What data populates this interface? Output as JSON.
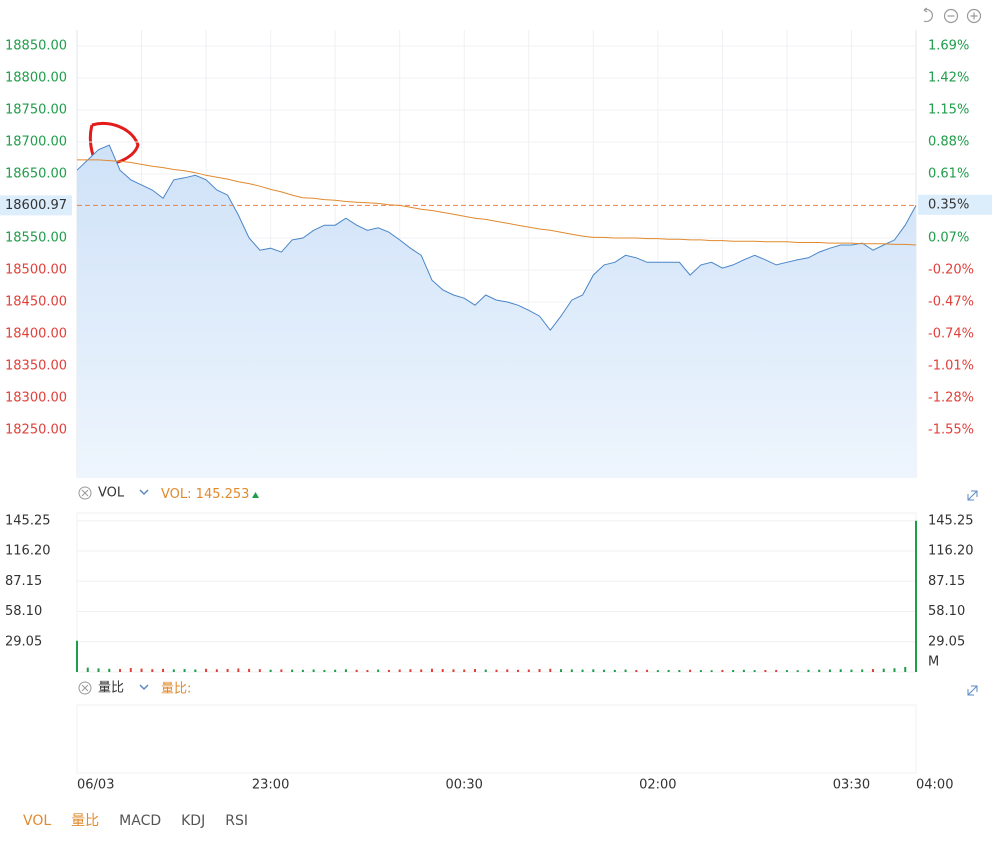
{
  "chart_data": [
    {
      "type": "area",
      "categories": [
        "06/03",
        null,
        null,
        null,
        null,
        null,
        null,
        null,
        null,
        null,
        null,
        null,
        null,
        null,
        null,
        null,
        null,
        null,
        "23:00",
        null,
        null,
        null,
        null,
        null,
        null,
        null,
        null,
        null,
        null,
        null,
        null,
        null,
        null,
        null,
        null,
        null,
        "00:30",
        null,
        null,
        null,
        null,
        null,
        null,
        null,
        null,
        null,
        null,
        null,
        null,
        null,
        null,
        null,
        null,
        null,
        "02:00",
        null,
        null,
        null,
        null,
        null,
        null,
        null,
        null,
        null,
        null,
        null,
        null,
        null,
        null,
        null,
        null,
        null,
        "03:30",
        null,
        null,
        null,
        null,
        null,
        "04:00"
      ],
      "series": [
        {
          "color": "#4a86c8",
          "values": [
            18656,
            18672,
            18688,
            18695,
            18656,
            18641,
            18633,
            18625,
            18612,
            18641,
            18644,
            18648,
            18641,
            18625,
            18617,
            18586,
            18550,
            18531,
            18534,
            18528,
            18547,
            18550,
            18562,
            18570,
            18570,
            18581,
            18570,
            18562,
            18566,
            18559,
            18547,
            18534,
            18523,
            18484,
            18469,
            18461,
            18456,
            18445,
            18461,
            18453,
            18450,
            18445,
            18437,
            18428,
            18406,
            18428,
            18453,
            18461,
            18492,
            18508,
            18512,
            18523,
            18519,
            18512,
            18512,
            18512,
            18512,
            18492,
            18508,
            18512,
            18503,
            18508,
            18516,
            18523,
            18516,
            18508,
            18512,
            18516,
            18519,
            18528,
            18534,
            18539,
            18539,
            18542,
            18531,
            18539,
            18547,
            18570,
            18600.97
          ]
        },
        {
          "color": "#e08a2e",
          "values": [
            18672,
            18672,
            18672,
            18671,
            18670,
            18668,
            18665,
            18662,
            18660,
            18657,
            18655,
            18652,
            18648,
            18645,
            18642,
            18638,
            18635,
            18631,
            18626,
            18622,
            18617,
            18613,
            18612,
            18610,
            18609,
            18607,
            18606,
            18605,
            18604,
            18602,
            18601,
            18598,
            18595,
            18593,
            18590,
            18587,
            18584,
            18581,
            18579,
            18576,
            18573,
            18570,
            18567,
            18564,
            18562,
            18559,
            18556,
            18553,
            18551,
            18551,
            18550,
            18550,
            18550,
            18549,
            18549,
            18548,
            18548,
            18547,
            18547,
            18546,
            18546,
            18545,
            18545,
            18545,
            18544,
            18544,
            18544,
            18543,
            18543,
            18543,
            18542,
            18542,
            18542,
            18541,
            18541,
            18541,
            18540,
            18540,
            18539
          ]
        }
      ],
      "ylim": [
        18175,
        18875
      ],
      "yticks": [
        {
          "value": 18850,
          "label": "18850.00"
        },
        {
          "value": 18800,
          "label": "18800.00"
        },
        {
          "value": 18750,
          "label": "18750.00"
        },
        {
          "value": 18700,
          "label": "18700.00"
        },
        {
          "value": 18650,
          "label": "18650.00"
        },
        {
          "value": 18550,
          "label": "18550.00"
        },
        {
          "value": 18500,
          "label": "18500.00"
        },
        {
          "value": 18450,
          "label": "18450.00"
        },
        {
          "value": 18400,
          "label": "18400.00"
        },
        {
          "value": 18350,
          "label": "18350.00"
        },
        {
          "value": 18300,
          "label": "18300.00"
        },
        {
          "value": 18250,
          "label": "18250.00"
        }
      ],
      "y2lim": [
        -1.955,
        1.825
      ],
      "y2ticks": [
        {
          "value": 1.69,
          "label": "1.69%"
        },
        {
          "value": 1.42,
          "label": "1.42%"
        },
        {
          "value": 1.15,
          "label": "1.15%"
        },
        {
          "value": 0.88,
          "label": "0.88%"
        },
        {
          "value": 0.61,
          "label": "0.61%"
        },
        {
          "value": 0.07,
          "label": "0.07%"
        },
        {
          "value": -0.2,
          "label": "-0.20%"
        },
        {
          "value": -0.47,
          "label": "-0.47%"
        },
        {
          "value": -0.74,
          "label": "-0.74%"
        },
        {
          "value": -1.01,
          "label": "-1.01%"
        },
        {
          "value": -1.28,
          "label": "-1.28%"
        },
        {
          "value": -1.55,
          "label": "-1.55%"
        }
      ],
      "current": {
        "value": 18600.97,
        "label": "18600.97"
      },
      "current_pct": {
        "value": 0.35,
        "label": "0.35%"
      },
      "up_color": "#1f9d4a",
      "down_color": "#e0403a"
    },
    {
      "type": "bar",
      "title": "VOL",
      "readout": "VOL:",
      "unit": "M",
      "values": [
        30,
        4.2,
        3.5,
        3.1,
        2.9,
        3.8,
        3.3,
        2.7,
        3.0,
        2.5,
        2.8,
        2.4,
        3.1,
        2.6,
        2.9,
        3.4,
        3.0,
        2.7,
        2.2,
        2.5,
        2.3,
        2.1,
        2.4,
        2.0,
        2.2,
        2.6,
        2.1,
        1.9,
        2.3,
        2.0,
        2.4,
        2.7,
        2.5,
        3.2,
        2.8,
        2.6,
        2.4,
        2.9,
        2.3,
        2.2,
        2.5,
        2.1,
        2.4,
        2.8,
        3.1,
        2.7,
        2.5,
        2.3,
        2.6,
        2.2,
        2.0,
        2.3,
        1.9,
        2.1,
        1.8,
        2.0,
        1.9,
        2.2,
        1.8,
        1.7,
        2.0,
        1.9,
        2.1,
        1.8,
        1.9,
        2.0,
        1.8,
        1.7,
        2.1,
        2.2,
        2.4,
        2.6,
        2.3,
        2.5,
        2.8,
        3.2,
        3.6,
        4.8,
        145.253
      ],
      "ylim": [
        0,
        152.7
      ],
      "yticks": [
        145.25,
        {
          "value": 116.2,
          "label": "116.20"
        },
        87.15,
        {
          "value": 58.1,
          "label": "58.10"
        },
        29.05
      ]
    },
    {
      "type": "empty",
      "title": "量比",
      "readout": "量比:"
    }
  ],
  "tabs": [
    {
      "label": "VOL",
      "active": true
    },
    {
      "label": "量比",
      "active": true
    },
    {
      "label": "MACD",
      "active": false
    },
    {
      "label": "KDJ",
      "active": false
    },
    {
      "label": "RSI",
      "active": false
    }
  ]
}
